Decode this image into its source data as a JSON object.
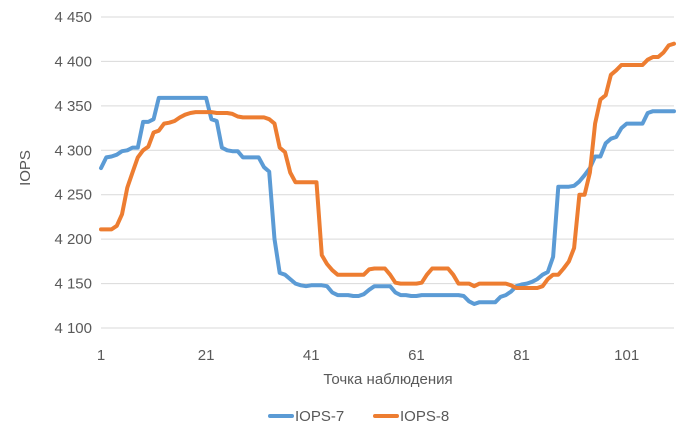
{
  "chart_data": {
    "type": "line",
    "title": "",
    "xlabel": "Точка наблюдения",
    "ylabel": "IOPS",
    "xlim": [
      1,
      110
    ],
    "ylim": [
      4100,
      4450
    ],
    "grid": true,
    "legend_position": "bottom",
    "x_tick_values": [
      1,
      21,
      41,
      61,
      81,
      101
    ],
    "x_tick_labels": [
      "1",
      "21",
      "41",
      "61",
      "81",
      "101"
    ],
    "y_tick_values": [
      4100,
      4150,
      4200,
      4250,
      4300,
      4350,
      4400,
      4450
    ],
    "y_tick_labels": [
      "4 100",
      "4 150",
      "4 200",
      "4 250",
      "4 300",
      "4 350",
      "4 400",
      "4 450"
    ],
    "x": [
      1,
      2,
      3,
      4,
      5,
      6,
      7,
      8,
      9,
      10,
      11,
      12,
      13,
      14,
      15,
      16,
      17,
      18,
      19,
      20,
      21,
      22,
      23,
      24,
      25,
      26,
      27,
      28,
      29,
      30,
      31,
      32,
      33,
      34,
      35,
      36,
      37,
      38,
      39,
      40,
      41,
      42,
      43,
      44,
      45,
      46,
      47,
      48,
      49,
      50,
      51,
      52,
      53,
      54,
      55,
      56,
      57,
      58,
      59,
      60,
      61,
      62,
      63,
      64,
      65,
      66,
      67,
      68,
      69,
      70,
      71,
      72,
      73,
      74,
      75,
      76,
      77,
      78,
      79,
      80,
      81,
      82,
      83,
      84,
      85,
      86,
      87,
      88,
      89,
      90,
      91,
      92,
      93,
      94,
      95,
      96,
      97,
      98,
      99,
      100,
      101,
      102,
      103,
      104,
      105,
      106,
      107,
      108,
      109,
      110
    ],
    "series": [
      {
        "name": "IOPS-7",
        "color": "#5b9bd5",
        "values": [
          4280,
          4292,
          4293,
          4295,
          4299,
          4300,
          4303,
          4303,
          4332,
          4332,
          4335,
          4359,
          4359,
          4359,
          4359,
          4359,
          4359,
          4359,
          4359,
          4359,
          4359,
          4335,
          4333,
          4303,
          4300,
          4299,
          4299,
          4292,
          4292,
          4292,
          4292,
          4281,
          4276,
          4200,
          4162,
          4160,
          4155,
          4150,
          4148,
          4147,
          4148,
          4148,
          4148,
          4147,
          4140,
          4137,
          4137,
          4137,
          4136,
          4136,
          4138,
          4143,
          4147,
          4147,
          4147,
          4147,
          4140,
          4137,
          4137,
          4136,
          4136,
          4137,
          4137,
          4137,
          4137,
          4137,
          4137,
          4137,
          4137,
          4136,
          4130,
          4127,
          4129,
          4129,
          4129,
          4129,
          4135,
          4137,
          4141,
          4147,
          4149,
          4150,
          4152,
          4155,
          4160,
          4163,
          4180,
          4259,
          4259,
          4259,
          4260,
          4265,
          4272,
          4280,
          4293,
          4293,
          4308,
          4313,
          4315,
          4325,
          4330,
          4330,
          4330,
          4330,
          4342,
          4344,
          4344,
          4344,
          4344,
          4344
        ]
      },
      {
        "name": "IOPS-8",
        "color": "#ed7d31",
        "values": [
          4211,
          4211,
          4211,
          4215,
          4228,
          4258,
          4275,
          4292,
          4300,
          4304,
          4320,
          4322,
          4330,
          4331,
          4333,
          4337,
          4340,
          4342,
          4343,
          4343,
          4343,
          4343,
          4342,
          4342,
          4342,
          4341,
          4338,
          4337,
          4337,
          4337,
          4337,
          4337,
          4335,
          4330,
          4303,
          4298,
          4275,
          4264,
          4264,
          4264,
          4264,
          4264,
          4182,
          4172,
          4165,
          4160,
          4160,
          4160,
          4160,
          4160,
          4160,
          4166,
          4167,
          4167,
          4167,
          4160,
          4151,
          4150,
          4150,
          4150,
          4150,
          4151,
          4160,
          4167,
          4167,
          4167,
          4167,
          4160,
          4150,
          4150,
          4150,
          4147,
          4150,
          4150,
          4150,
          4150,
          4150,
          4150,
          4148,
          4145,
          4145,
          4145,
          4145,
          4145,
          4147,
          4155,
          4160,
          4160,
          4167,
          4175,
          4190,
          4250,
          4250,
          4275,
          4330,
          4357,
          4362,
          4385,
          4390,
          4396,
          4396,
          4396,
          4396,
          4396,
          4402,
          4405,
          4405,
          4410,
          4418,
          4420
        ]
      }
    ]
  }
}
